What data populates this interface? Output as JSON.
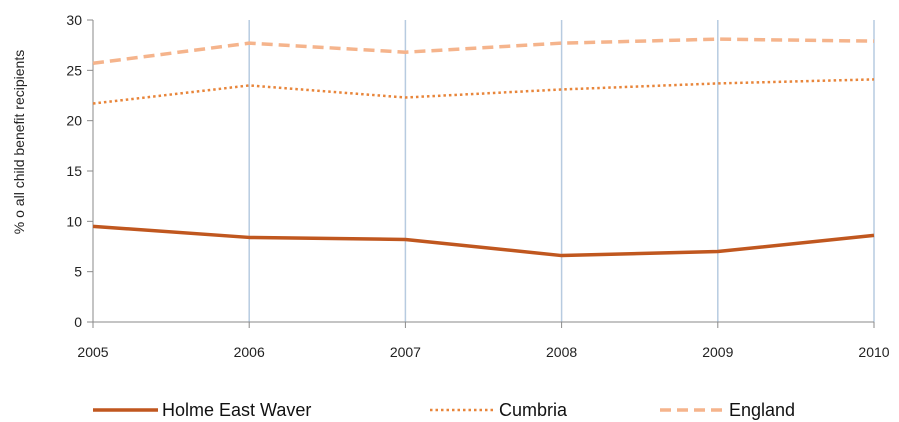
{
  "chart_data": {
    "type": "line",
    "title": "",
    "xlabel": "",
    "ylabel": "% o all child benefit recipients",
    "x": [
      "2005",
      "2006",
      "2007",
      "2008",
      "2009",
      "2010"
    ],
    "ylim": [
      0,
      30
    ],
    "yticks": [
      "0",
      "5",
      "10",
      "15",
      "20",
      "25",
      "30"
    ],
    "grid": "vertical",
    "legend_position": "bottom",
    "series": [
      {
        "name": "Holme East Waver",
        "values": [
          9.5,
          8.4,
          8.2,
          6.6,
          7.0,
          8.6
        ],
        "color": "#c0571f",
        "style": "solid"
      },
      {
        "name": "Cumbria",
        "values": [
          21.7,
          23.5,
          22.3,
          23.1,
          23.7,
          24.1
        ],
        "color": "#e8853a",
        "style": "dotted"
      },
      {
        "name": "England",
        "values": [
          25.7,
          27.7,
          26.8,
          27.7,
          28.1,
          27.9
        ],
        "color": "#f5b48c",
        "style": "dashed"
      }
    ]
  }
}
